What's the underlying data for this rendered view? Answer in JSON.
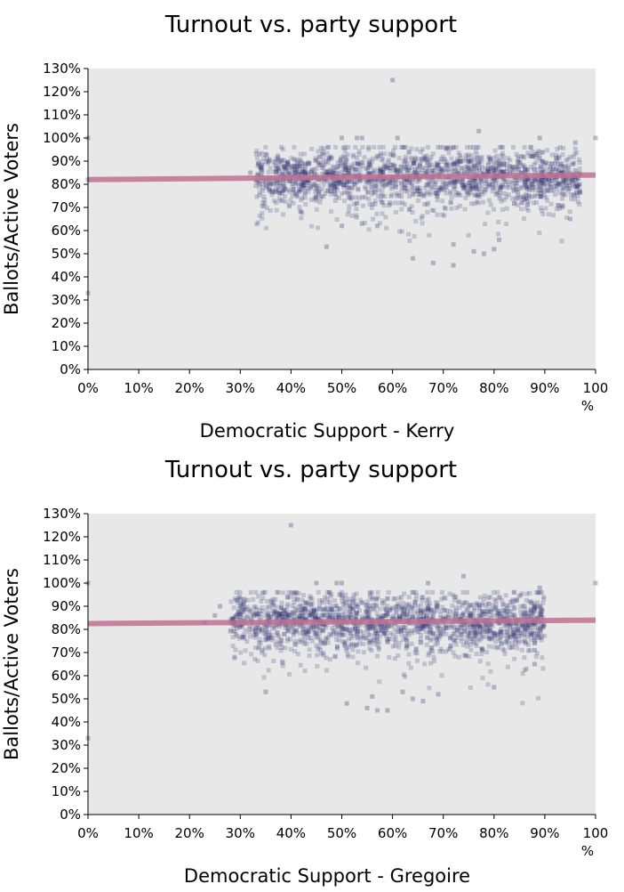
{
  "chart_data": [
    {
      "type": "scatter",
      "title": "Turnout vs. party support",
      "xlabel": "Democratic Support - Kerry",
      "ylabel": "Ballots/Active Voters",
      "xlim": [
        0,
        100
      ],
      "ylim": [
        0,
        130
      ],
      "x_ticks": [
        "0%",
        "10%",
        "20%",
        "30%",
        "40%",
        "50%",
        "60%",
        "70%",
        "80%",
        "90%",
        "100",
        "%"
      ],
      "y_ticks": [
        "0%",
        "10%",
        "20%",
        "30%",
        "40%",
        "50%",
        "60%",
        "70%",
        "80%",
        "90%",
        "100%",
        "110%",
        "120%",
        "130%"
      ],
      "grid": false,
      "background": "#e8e8e8",
      "marker_color": "#303070",
      "trend_color": "#c07090",
      "trend": {
        "x": [
          0,
          100
        ],
        "y": [
          82,
          84
        ]
      },
      "cloud": {
        "x_range": [
          33,
          97
        ],
        "y_center": 84,
        "y_spread": 6,
        "point_count": 1800
      },
      "outliers": [
        [
          0,
          100
        ],
        [
          0,
          33
        ],
        [
          0,
          82
        ],
        [
          50,
          100
        ],
        [
          53,
          100
        ],
        [
          54,
          100
        ],
        [
          61,
          100
        ],
        [
          60,
          125
        ],
        [
          77,
          103
        ],
        [
          89,
          100
        ],
        [
          100,
          100
        ],
        [
          96,
          98
        ],
        [
          47,
          53
        ],
        [
          72,
          45
        ],
        [
          72,
          54
        ],
        [
          64,
          48
        ],
        [
          78,
          50
        ],
        [
          76,
          51
        ],
        [
          68,
          46
        ],
        [
          80,
          52
        ],
        [
          81,
          56
        ],
        [
          54,
          63
        ],
        [
          57,
          62
        ],
        [
          50,
          62
        ],
        [
          95,
          65
        ],
        [
          96,
          83
        ],
        [
          96,
          86
        ],
        [
          35,
          93
        ],
        [
          34,
          87
        ],
        [
          32,
          85
        ]
      ]
    },
    {
      "type": "scatter",
      "title": "Turnout vs. party support",
      "xlabel": "Democratic Support - Gregoire",
      "ylabel": "Ballots/Active Voters",
      "xlim": [
        0,
        100
      ],
      "ylim": [
        0,
        130
      ],
      "x_ticks": [
        "0%",
        "10%",
        "20%",
        "30%",
        "40%",
        "50%",
        "60%",
        "70%",
        "80%",
        "90%",
        "100",
        "%"
      ],
      "y_ticks": [
        "0%",
        "10%",
        "20%",
        "30%",
        "40%",
        "50%",
        "60%",
        "70%",
        "80%",
        "90%",
        "100%",
        "110%",
        "120%",
        "130%"
      ],
      "grid": false,
      "background": "#e8e8e8",
      "marker_color": "#303070",
      "trend_color": "#c07090",
      "trend": {
        "x": [
          0,
          100
        ],
        "y": [
          82.5,
          84
        ]
      },
      "cloud": {
        "x_range": [
          28,
          90
        ],
        "y_center": 84,
        "y_spread": 6,
        "point_count": 1800
      },
      "outliers": [
        [
          0,
          100
        ],
        [
          0,
          33
        ],
        [
          40,
          125
        ],
        [
          45,
          100
        ],
        [
          49,
          100
        ],
        [
          50,
          100
        ],
        [
          67,
          100
        ],
        [
          74,
          103
        ],
        [
          89,
          98
        ],
        [
          100,
          100
        ],
        [
          35,
          53
        ],
        [
          51,
          48
        ],
        [
          55,
          46
        ],
        [
          57,
          45
        ],
        [
          59,
          45
        ],
        [
          66,
          49
        ],
        [
          69,
          52
        ],
        [
          80,
          55
        ],
        [
          88,
          65
        ],
        [
          88,
          71
        ],
        [
          23,
          83
        ],
        [
          25,
          86
        ],
        [
          26,
          90
        ],
        [
          30,
          93
        ],
        [
          56,
          51
        ],
        [
          62,
          53
        ],
        [
          64,
          50
        ]
      ]
    }
  ]
}
